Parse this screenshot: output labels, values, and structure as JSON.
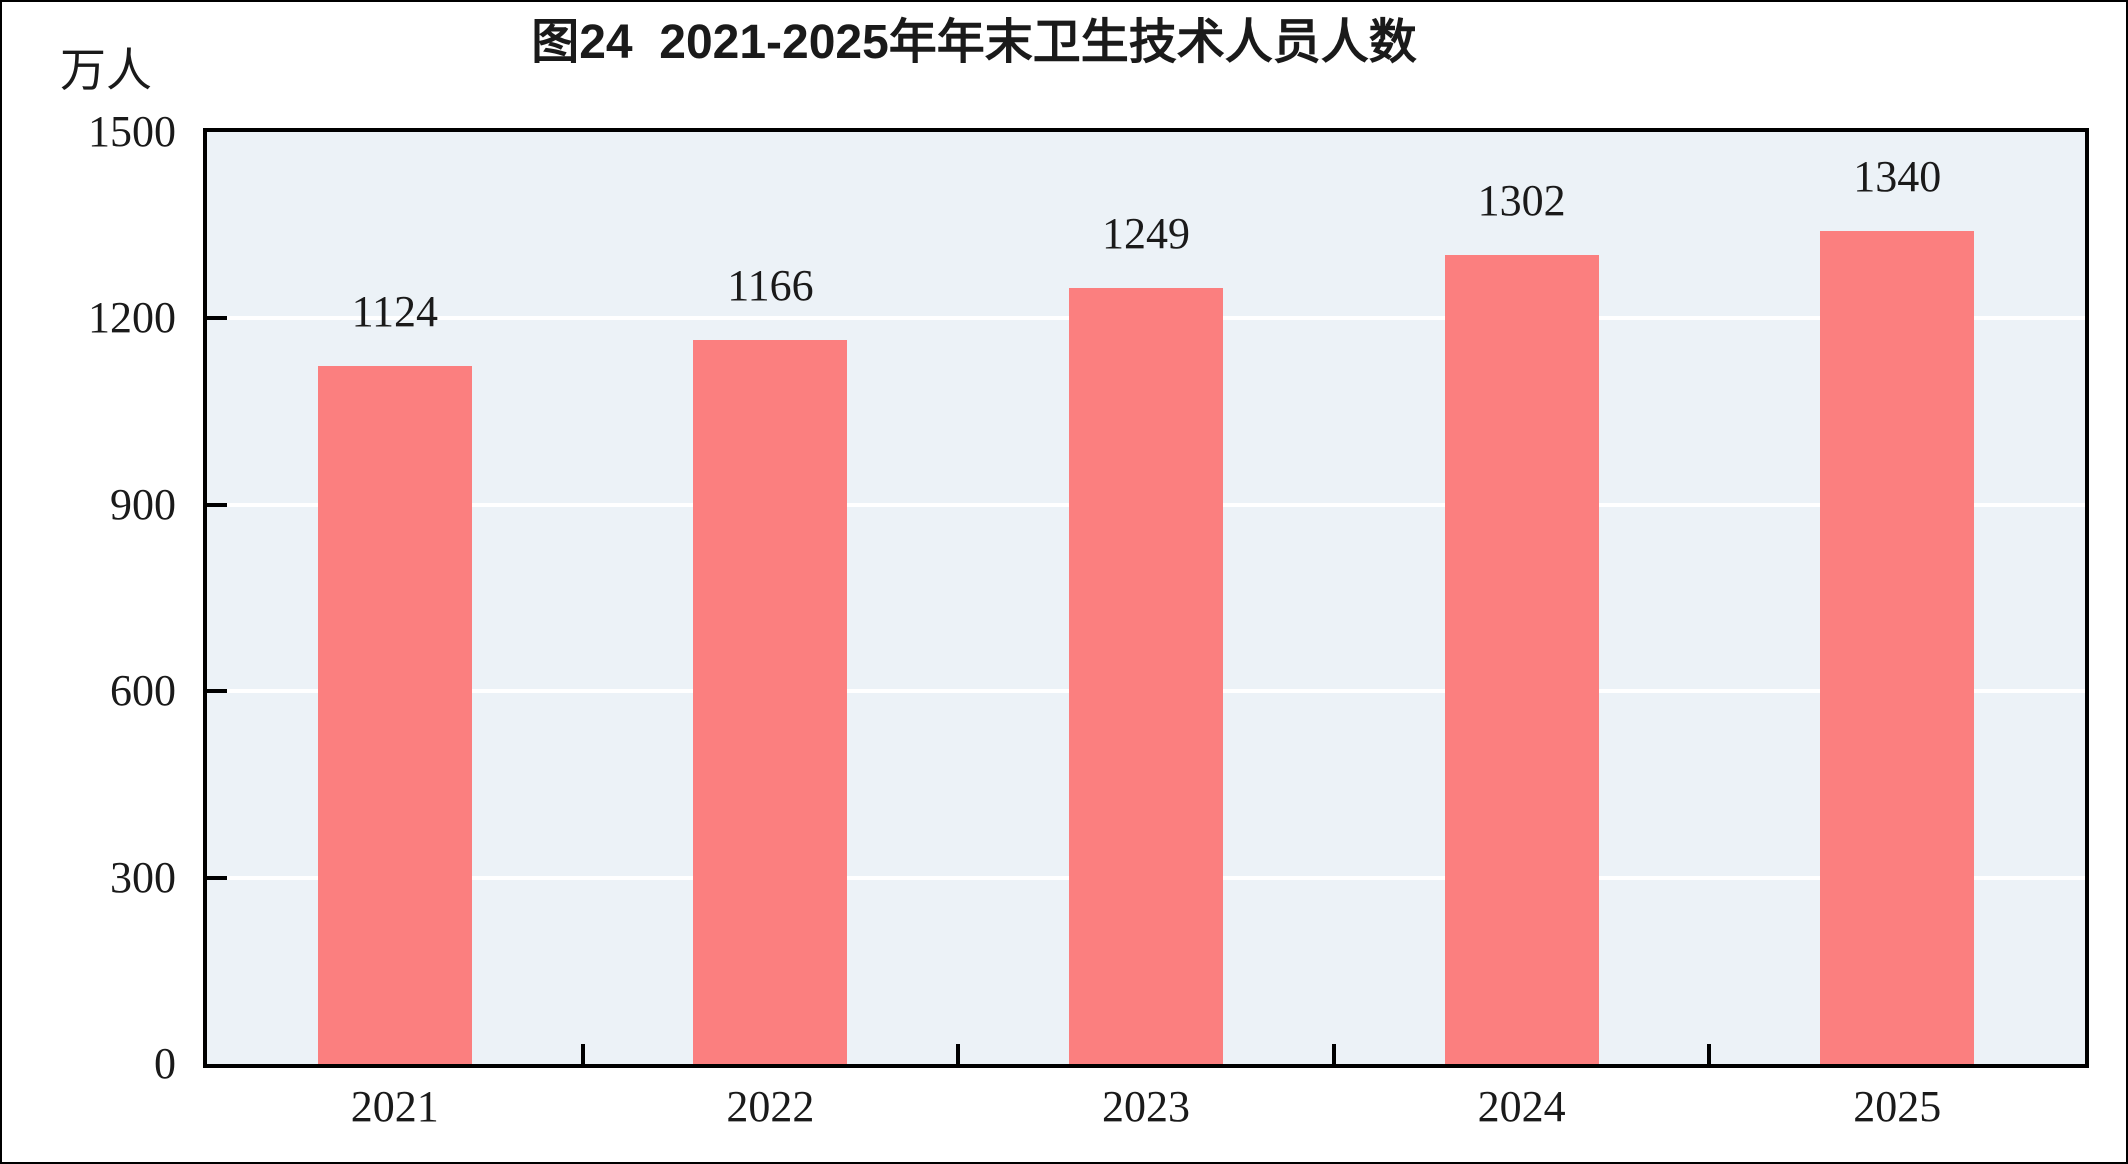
{
  "figure": {
    "frame_border_color": "#000000",
    "background_color": "#ffffff"
  },
  "chart_data": {
    "type": "bar",
    "title": "图24  2021-2025年年末卫生技术人员人数",
    "unit_label": "万人",
    "categories": [
      "2021",
      "2022",
      "2023",
      "2024",
      "2025"
    ],
    "values": [
      1124,
      1166,
      1249,
      1302,
      1340
    ],
    "data_labels": [
      "1124",
      "1166",
      "1249",
      "1302",
      "1340"
    ],
    "xlabel": "",
    "ylabel": "万人",
    "ylim": [
      0,
      1500
    ],
    "yticks": [
      0,
      300,
      600,
      900,
      1200,
      1500
    ],
    "grid": "horizontal white gridlines at 300, 600, 900, 1200",
    "legend": "none",
    "colors": {
      "bar_fill": "#fb7f7f",
      "plot_background": "#ecf2f7",
      "gridline": "#ffffff",
      "axis": "#000000",
      "text": "#1a1a1a"
    }
  }
}
